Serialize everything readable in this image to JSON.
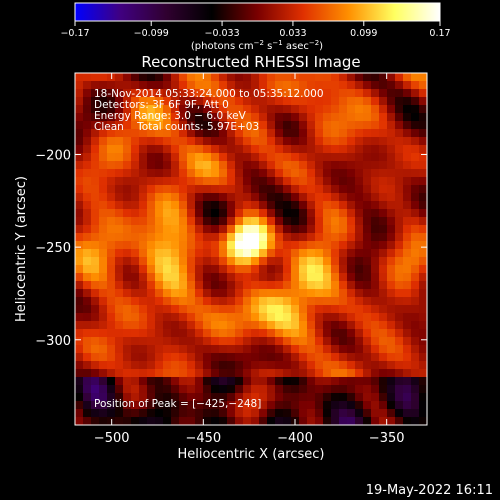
{
  "chart_data": {
    "type": "heatmap",
    "title": "Reconstructed RHESSI Image",
    "xlabel": "Heliocentric X (arcsec)",
    "ylabel": "Heliocentric Y (arcsec)",
    "xlim": [
      -520,
      -328
    ],
    "ylim": [
      -346,
      -156
    ],
    "xticks": [
      -500,
      -450,
      -400,
      -350
    ],
    "yticks": [
      -200,
      -250,
      -300
    ],
    "xtick_labels": [
      "−500",
      "−450",
      "−400",
      "−350"
    ],
    "ytick_labels": [
      "−200",
      "−250",
      "−300"
    ],
    "colorbar": {
      "range": [
        -0.17,
        0.17
      ],
      "ticks": [
        -0.17,
        -0.099,
        -0.033,
        0.033,
        0.099,
        0.17
      ],
      "tick_labels": [
        "−0.17",
        "−0.099",
        "−0.033",
        "0.033",
        "0.099",
        "0.17"
      ],
      "units_main": "(photons cm",
      "units_exp1": "−2",
      "units_mid": " s",
      "units_exp2": "−1",
      "units_mid2": " asec",
      "units_exp3": "−2",
      "units_end": ")",
      "colors": [
        "#0000ff",
        "#400080",
        "#300030",
        "#000000",
        "#7a0000",
        "#e03000",
        "#ff9000",
        "#ffff60",
        "#ffffff"
      ]
    },
    "peak": {
      "x": -425,
      "y": -248,
      "value": 0.17
    },
    "info_lines": [
      "18-Nov-2014 05:33:24.000 to 05:35:12.000",
      "Detectors: 3F 6F 9F, Att 0",
      "Energy Range: 3.0 − 6.0 keV",
      "Clean    Total counts: 5.97E+03"
    ],
    "peak_label": "Position of Peak = [−425,−248]",
    "footer": "19-May-2022 16:11"
  }
}
